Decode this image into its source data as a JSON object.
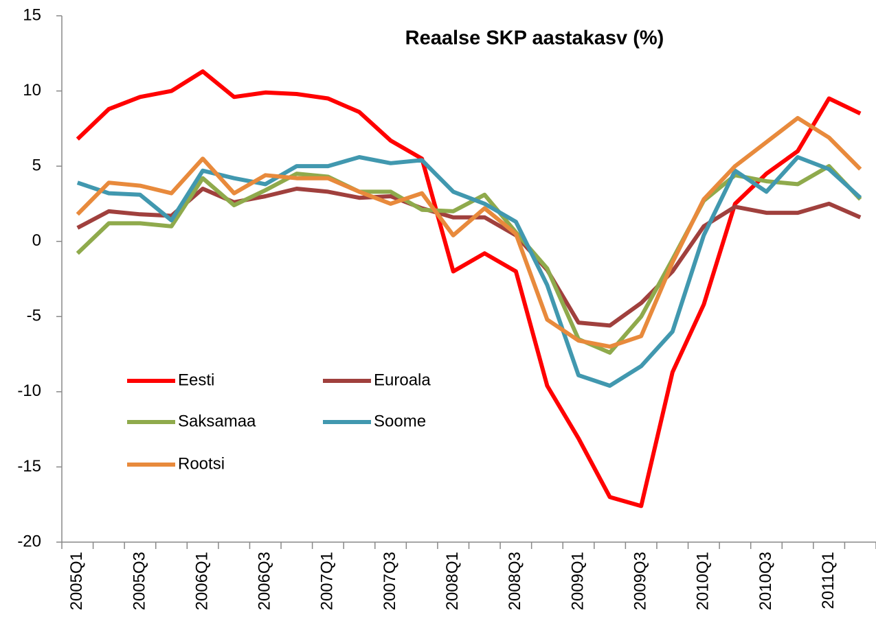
{
  "chart_data": {
    "type": "line",
    "title": "Reaalse SKP aastakasv (%)",
    "categories": [
      "2005Q1",
      null,
      "2005Q3",
      null,
      "2006Q1",
      null,
      "2006Q3",
      null,
      "2007Q1",
      null,
      "2007Q3",
      null,
      "2008Q1",
      null,
      "2008Q3",
      null,
      "2009Q1",
      null,
      "2009Q3",
      null,
      "2010Q1",
      null,
      "2010Q3",
      null,
      "2011Q1",
      null
    ],
    "series": [
      {
        "name": "Eesti",
        "color": "#ff0000",
        "values": [
          6.8,
          8.8,
          9.6,
          10.0,
          11.3,
          9.6,
          9.9,
          9.8,
          9.5,
          8.6,
          6.7,
          5.5,
          -2.0,
          -0.8,
          -2.0,
          -9.6,
          -13.1,
          -17.0,
          -17.6,
          -8.7,
          -4.2,
          2.5,
          4.5,
          6.0,
          9.5,
          8.5
        ]
      },
      {
        "name": "Euroala",
        "color": "#a0403d",
        "values": [
          0.9,
          2.0,
          1.8,
          1.7,
          3.5,
          2.6,
          3.0,
          3.5,
          3.3,
          2.9,
          3.0,
          2.2,
          1.6,
          1.6,
          0.4,
          -1.9,
          -5.4,
          -5.6,
          -4.1,
          -2.0,
          1.0,
          2.3,
          1.9,
          1.9,
          2.5,
          1.6
        ]
      },
      {
        "name": "Saksamaa",
        "color": "#8faa4c",
        "values": [
          -0.8,
          1.2,
          1.2,
          1.0,
          4.2,
          2.4,
          3.4,
          4.5,
          4.3,
          3.3,
          3.3,
          2.1,
          2.0,
          3.1,
          0.6,
          -1.8,
          -6.5,
          -7.4,
          -5.0,
          -1.2,
          2.7,
          4.4,
          4.0,
          3.8,
          5.0,
          2.8
        ]
      },
      {
        "name": "Soome",
        "color": "#4198af",
        "values": [
          3.9,
          3.2,
          3.1,
          1.4,
          4.7,
          4.2,
          3.8,
          5.0,
          5.0,
          5.6,
          5.2,
          5.4,
          3.3,
          2.5,
          1.3,
          -2.9,
          -8.9,
          -9.6,
          -8.3,
          -6.0,
          0.4,
          4.7,
          3.3,
          5.6,
          4.8,
          2.9
        ]
      },
      {
        "name": "Rootsi",
        "color": "#e88a3c",
        "values": [
          1.8,
          3.9,
          3.7,
          3.2,
          5.5,
          3.2,
          4.4,
          4.2,
          4.2,
          3.3,
          2.5,
          3.2,
          0.4,
          2.2,
          0.5,
          -5.2,
          -6.6,
          -7.0,
          -6.3,
          -1.4,
          2.8,
          5.0,
          6.6,
          8.2,
          6.9,
          4.8
        ]
      }
    ],
    "ylim": [
      -20,
      15
    ],
    "yticks": [
      -20,
      -15,
      -10,
      -5,
      0,
      5,
      10,
      15
    ],
    "grid": false
  }
}
